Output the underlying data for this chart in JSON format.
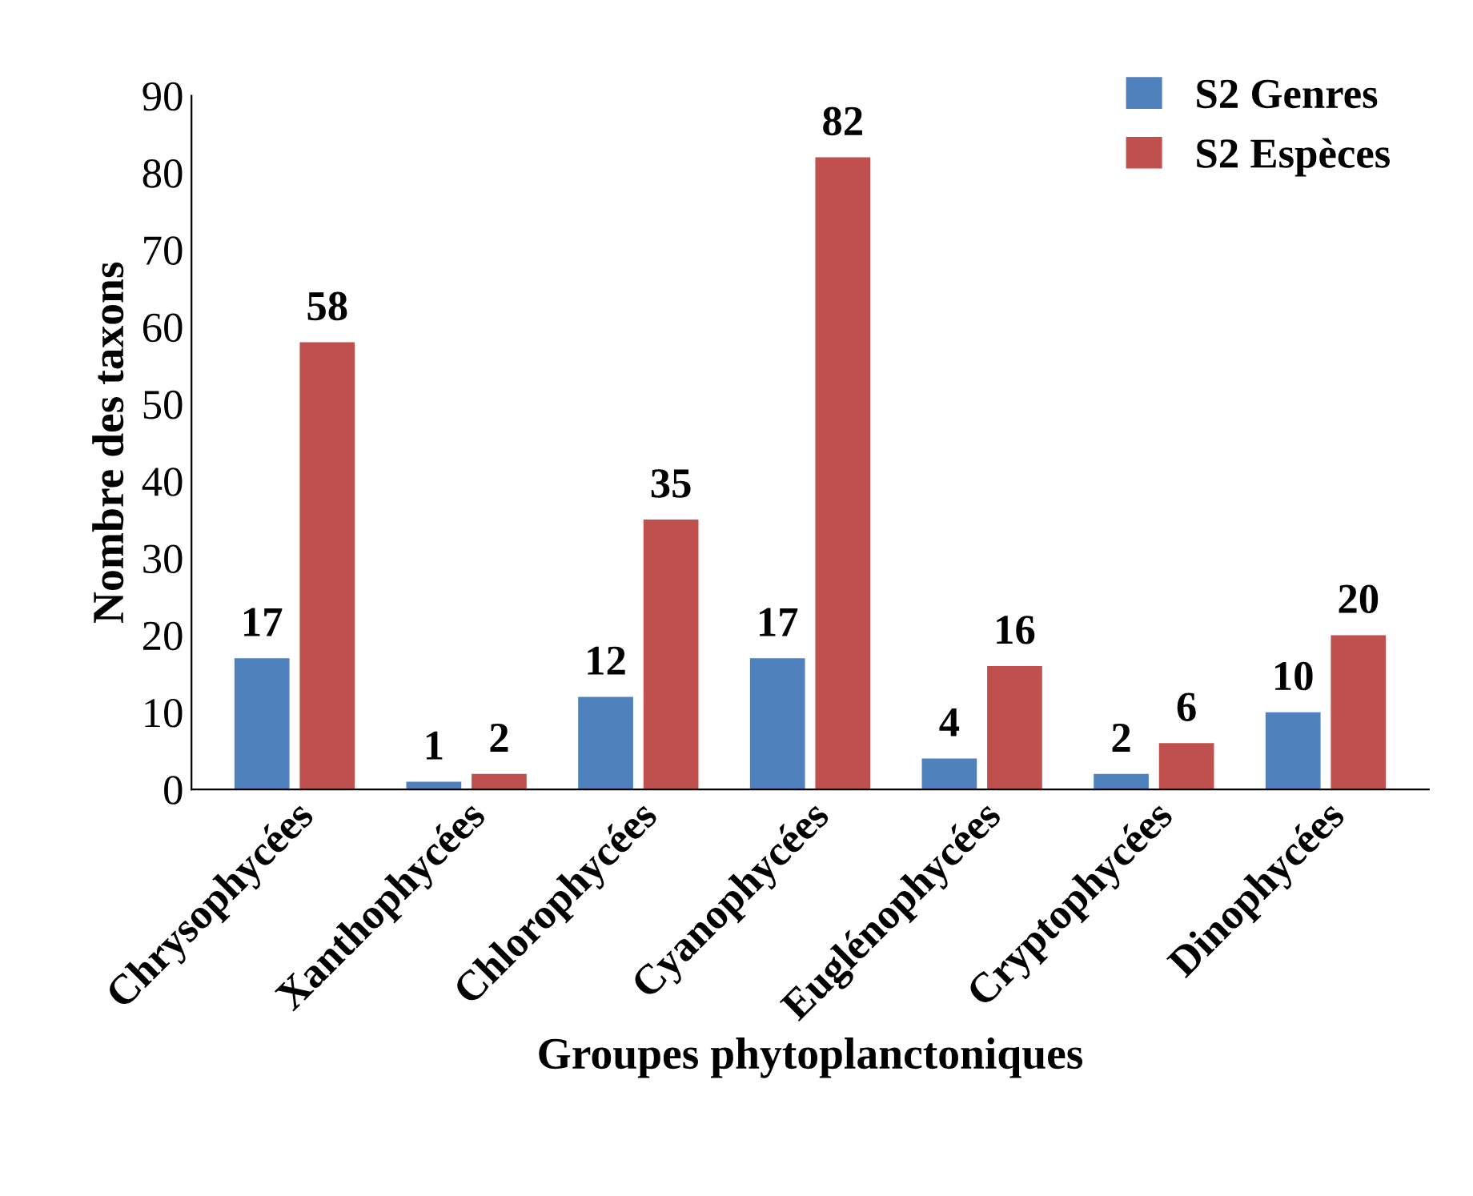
{
  "chart_data": {
    "type": "bar",
    "xlabel": "Groupes phytoplanctoniques",
    "ylabel": "Nombre des taxons",
    "categories": [
      "Chrysophycées",
      "Xanthophycées",
      "Chlorophycées",
      "Cyanophycées",
      "Euglénophycées",
      "Cryptophycées",
      "Dinophycées"
    ],
    "series": [
      {
        "name": "S2 Genres",
        "color": "#4f81bd",
        "values": [
          17,
          1,
          12,
          17,
          4,
          2,
          10
        ]
      },
      {
        "name": "S2 Espèces",
        "color": "#c0504d",
        "values": [
          58,
          2,
          35,
          82,
          16,
          6,
          20
        ]
      }
    ],
    "ylim": [
      0,
      90
    ],
    "yticks": [
      0,
      10,
      20,
      30,
      40,
      50,
      60,
      70,
      80,
      90
    ],
    "grid": false,
    "legend": "top right",
    "data_labels": true
  }
}
